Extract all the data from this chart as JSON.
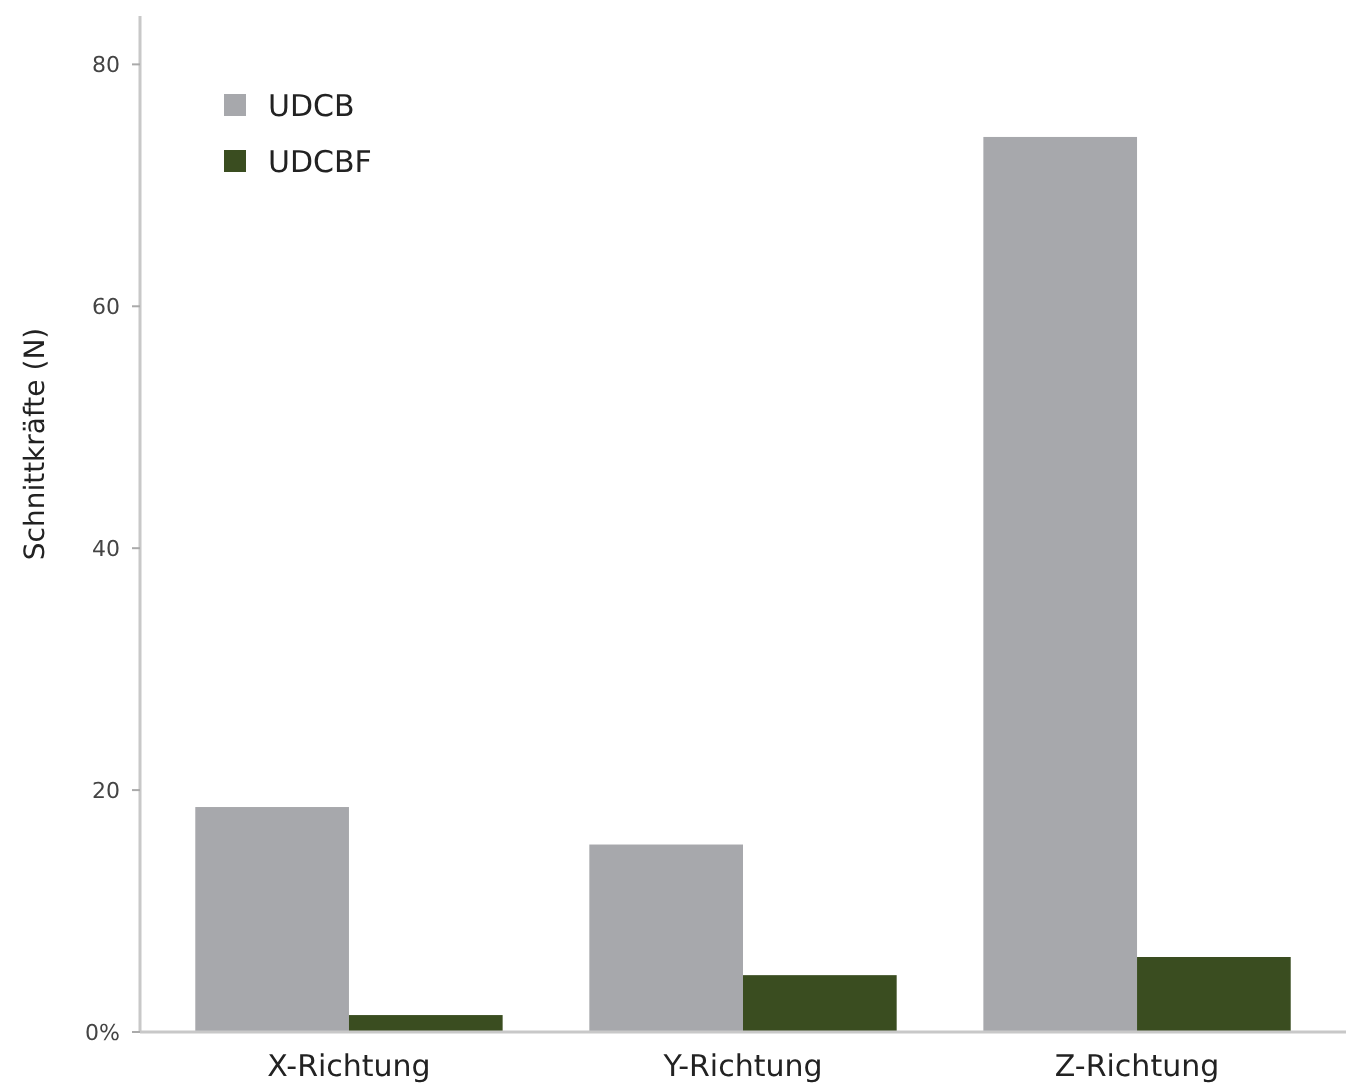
{
  "chart_data": {
    "type": "bar",
    "ylabel": "Schnittkräfte (N)",
    "categories": [
      "X-Richtung",
      "Y-Richtung",
      "Z-Richtung"
    ],
    "series": [
      {
        "name": "UDCB",
        "color": "#a7a8ac",
        "values": [
          18.6,
          15.5,
          74
        ]
      },
      {
        "name": "UDCBF",
        "color": "#3a4d20",
        "values": [
          1.4,
          4.7,
          6.2
        ]
      }
    ],
    "ylim": [
      0,
      84
    ],
    "yticks": [
      {
        "value": 0,
        "label": "0%"
      },
      20,
      40,
      60,
      80
    ],
    "grid": false,
    "legend": "top left"
  }
}
